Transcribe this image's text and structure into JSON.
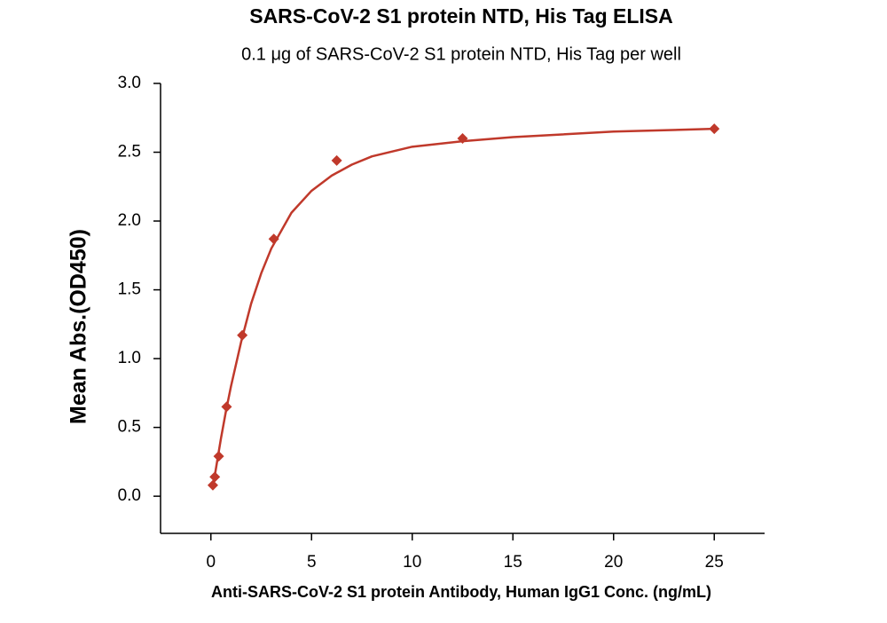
{
  "chart_data": {
    "type": "scatter",
    "title": "SARS-CoV-2 S1 protein NTD, His Tag ELISA",
    "subtitle": "0.1 μg of SARS-CoV-2 S1 protein NTD, His Tag per well",
    "x_label": "Anti-SARS-CoV-2 S1 protein Antibody, Human IgG1 Conc. (ng/mL)",
    "y_label": "Mean Abs.(OD450)",
    "x": [
      0.098,
      0.195,
      0.39,
      0.78,
      1.56,
      3.125,
      6.25,
      12.5,
      25
    ],
    "values": [
      0.08,
      0.14,
      0.29,
      0.65,
      1.17,
      1.87,
      2.44,
      2.6,
      2.67
    ],
    "color": "#c0392b",
    "curve": {
      "x": [
        0.1,
        0.25,
        0.5,
        0.75,
        1,
        1.5,
        2,
        2.5,
        3,
        4,
        5,
        6,
        7,
        8,
        10,
        12.5,
        15,
        20,
        25
      ],
      "y": [
        0.07,
        0.2,
        0.42,
        0.62,
        0.8,
        1.12,
        1.4,
        1.62,
        1.8,
        2.06,
        2.22,
        2.33,
        2.41,
        2.47,
        2.54,
        2.58,
        2.61,
        2.65,
        2.67
      ]
    },
    "xlim": [
      -2.5,
      27.5
    ],
    "ylim": [
      -0.27,
      3.0
    ],
    "xticks": [
      0,
      5,
      10,
      15,
      20,
      25
    ],
    "yticks": [
      {
        "value": 0,
        "label": "0.0"
      },
      {
        "value": 0.5,
        "label": "0.5"
      },
      {
        "value": 1,
        "label": "1.0"
      },
      {
        "value": 1.5,
        "label": "1.5"
      },
      {
        "value": 2,
        "label": "2.0"
      },
      {
        "value": 2.5,
        "label": "2.5"
      },
      {
        "value": 3,
        "label": "3.0"
      }
    ]
  }
}
